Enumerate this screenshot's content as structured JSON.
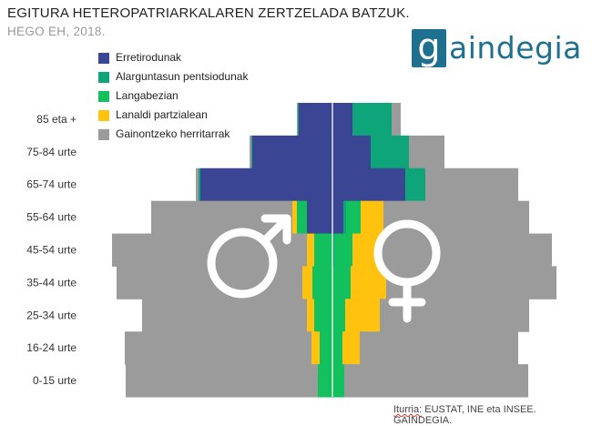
{
  "header": {
    "title": "EGITURA HETEROPATRIARKALAREN ZERTZELADA BATZUK.",
    "subtitle": "HEGO EH, 2018."
  },
  "logo": {
    "mark": "g",
    "text": "aindegia"
  },
  "source": {
    "label": "Iturria:",
    "text": " EUSTAT, INE eta INSEE. GAINDEGIA."
  },
  "colors": {
    "Erretirodunak": "#3a4594",
    "Alarguntasun pentsiodunak": "#0fa57a",
    "Langabezian": "#13c05e",
    "Lanaldi partzialean": "#ffc20e",
    "Gainontzeko herritarrak": "#9b9b9b"
  },
  "chart_data": {
    "type": "bar",
    "orientation": "horizontal-population-pyramid",
    "categories": [
      "85 eta +",
      "75-84 urte",
      "65-74 urte",
      "55-64 urte",
      "45-54 urte",
      "35-44 urte",
      "25-34 urte",
      "16-24 urte",
      "0-15 urte"
    ],
    "legend": [
      "Erretirodunak",
      "Alarguntasun pentsiodunak",
      "Langabezian",
      "Lanaldi partzialean",
      "Gainontzeko herritarrak"
    ],
    "legend_position": "top-left",
    "groups": [
      "male",
      "female"
    ],
    "group_symbols": {
      "male": "♂",
      "female": "♀"
    },
    "series": [
      {
        "name": "Erretirodunak",
        "male": [
          37,
          88,
          145,
          28,
          0,
          0,
          0,
          0,
          0
        ],
        "female": [
          22,
          42,
          80,
          12,
          0,
          0,
          0,
          0,
          0
        ]
      },
      {
        "name": "Alarguntasun pentsiodunak",
        "male": [
          1,
          1,
          2,
          0,
          0,
          0,
          0,
          0,
          0
        ],
        "female": [
          43,
          42,
          22,
          3,
          2,
          0,
          0,
          0,
          0
        ]
      },
      {
        "name": "Langabezian",
        "male": [
          0,
          0,
          0,
          11,
          20,
          22,
          20,
          14,
          16
        ],
        "female": [
          0,
          0,
          0,
          16,
          20,
          20,
          14,
          11,
          13
        ]
      },
      {
        "name": "Lanaldi partzialean",
        "male": [
          0,
          0,
          0,
          5,
          8,
          11,
          8,
          9,
          0
        ],
        "female": [
          0,
          0,
          0,
          25,
          31,
          39,
          38,
          19,
          0
        ]
      },
      {
        "name": "Gainontzeko herritarrak",
        "male": [
          1,
          2,
          3,
          155,
          214,
          204,
          181,
          205,
          211
        ],
        "female": [
          10,
          39,
          102,
          160,
          188,
          187,
          164,
          174,
          202
        ]
      }
    ],
    "xlabel": "",
    "ylabel": "",
    "grid": false
  }
}
